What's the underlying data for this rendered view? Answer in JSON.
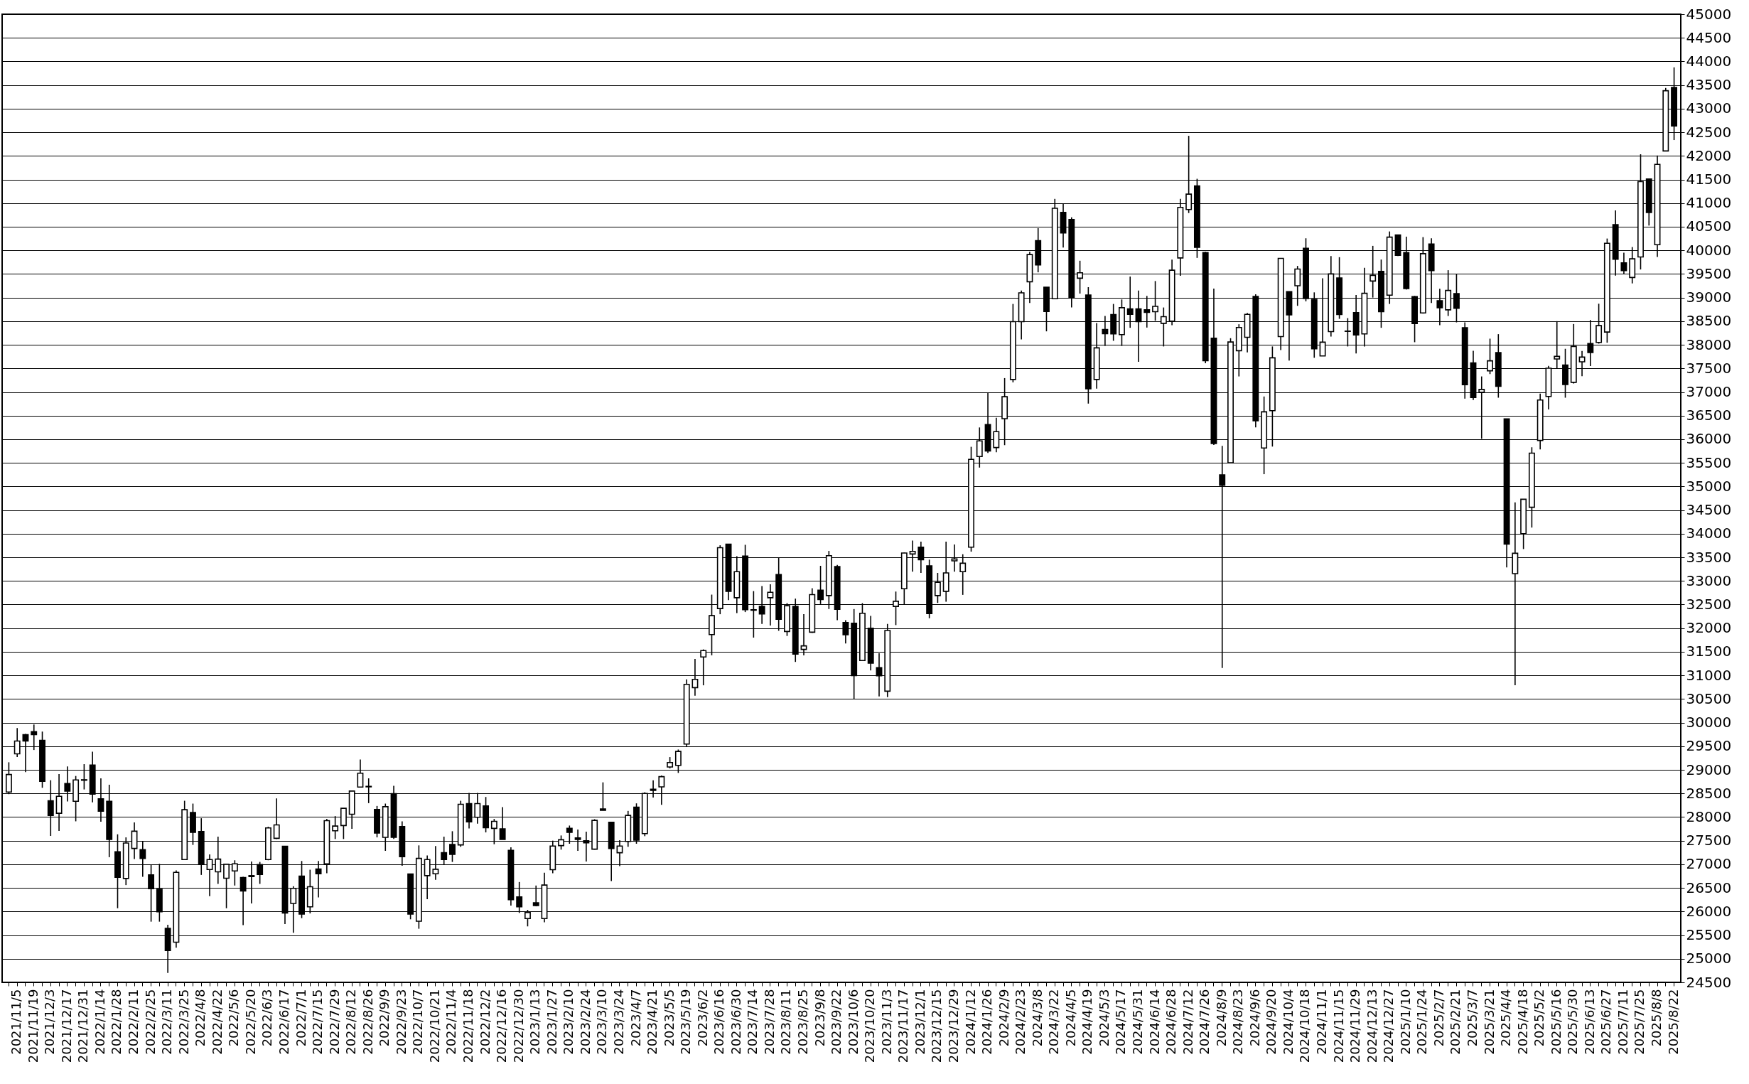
{
  "chart_data": {
    "type": "candlestick",
    "categories": [
      null,
      "2021/11/5",
      null,
      "2021/11/19",
      null,
      "2021/12/3",
      null,
      "2021/12/17",
      null,
      "2021/12/31",
      null,
      "2022/1/14",
      null,
      "2022/1/28",
      null,
      "2022/2/11",
      null,
      "2022/2/25",
      null,
      "2022/3/11",
      null,
      "2022/3/25",
      null,
      "2022/4/8",
      null,
      "2022/4/22",
      null,
      "2022/5/6",
      null,
      "2022/5/20",
      null,
      "2022/6/3",
      null,
      "2022/6/17",
      null,
      "2022/7/1",
      null,
      "2022/7/15",
      null,
      "2022/7/29",
      null,
      "2022/8/12",
      null,
      "2022/8/26",
      null,
      "2022/9/9",
      null,
      "2022/9/23",
      null,
      "2022/10/7",
      null,
      "2022/10/21",
      null,
      "2022/11/4",
      null,
      "2022/11/18",
      null,
      "2022/12/2",
      null,
      "2022/12/16",
      null,
      "2022/12/30",
      null,
      "2023/1/13",
      null,
      "2023/1/27",
      null,
      "2023/2/10",
      null,
      "2023/2/24",
      null,
      "2023/3/10",
      null,
      "2023/3/24",
      null,
      "2023/4/7",
      null,
      "2023/4/21",
      null,
      "2023/5/5",
      null,
      "2023/5/19",
      null,
      "2023/6/2",
      null,
      "2023/6/16",
      null,
      "2023/6/30",
      null,
      "2023/7/14",
      null,
      "2023/7/28",
      null,
      "2023/8/11",
      null,
      "2023/8/25",
      null,
      "2023/9/8",
      null,
      "2023/9/22",
      null,
      "2023/10/6",
      null,
      "2023/10/20",
      null,
      "2023/11/3",
      null,
      "2023/11/17",
      null,
      "2023/12/1",
      null,
      "2023/12/15",
      null,
      "2023/12/29",
      null,
      "2024/1/12",
      null,
      "2024/1/26",
      null,
      "2024/2/9",
      null,
      "2024/2/23",
      null,
      "2024/3/8",
      null,
      "2024/3/22",
      null,
      "2024/4/5",
      null,
      "2024/4/19",
      null,
      "2024/5/3",
      null,
      "2024/5/17",
      null,
      "2024/5/31",
      null,
      "2024/6/14",
      null,
      "2024/6/28",
      null,
      "2024/7/12",
      null,
      "2024/7/26",
      null,
      "2024/8/9",
      null,
      "2024/8/23",
      null,
      "2024/9/6",
      null,
      "2024/9/20",
      null,
      "2024/10/4",
      null,
      "2024/10/18",
      null,
      "2024/11/1",
      null,
      "2024/11/15",
      null,
      "2024/11/29",
      null,
      "2024/12/13",
      null,
      "2024/12/27",
      null,
      "2025/1/10",
      null,
      "2025/1/24",
      null,
      "2025/2/7",
      null,
      "2025/2/21",
      null,
      "2025/3/7",
      null,
      "2025/3/21",
      null,
      "2025/4/4",
      null,
      "2025/4/18",
      null,
      "2025/5/2",
      null,
      "2025/5/16",
      null,
      "2025/5/30",
      null,
      "2025/6/13",
      null,
      "2025/6/27",
      null,
      "2025/7/11",
      null,
      "2025/7/25",
      null,
      "2025/8/8",
      null,
      "2025/8/22"
    ],
    "ohlc": [
      [
        28530,
        29160,
        28485,
        28900
      ],
      [
        29340,
        29885,
        29270,
        29610
      ],
      [
        29745,
        29760,
        28950,
        29610
      ],
      [
        29810,
        29960,
        29420,
        29745
      ],
      [
        29625,
        29810,
        28620,
        28755
      ],
      [
        28345,
        28780,
        27600,
        28035
      ],
      [
        28080,
        28910,
        27705,
        28440
      ],
      [
        28710,
        29070,
        28330,
        28550
      ],
      [
        28335,
        28870,
        27910,
        28785
      ],
      [
        28780,
        29120,
        28585,
        28790
      ],
      [
        29100,
        29385,
        28310,
        28485
      ],
      [
        28385,
        28820,
        27900,
        28125
      ],
      [
        28335,
        28685,
        27150,
        27525
      ],
      [
        27265,
        27635,
        26070,
        26725
      ],
      [
        26700,
        27570,
        26560,
        27450
      ],
      [
        27335,
        27885,
        27110,
        27700
      ],
      [
        27310,
        27485,
        26735,
        27125
      ],
      [
        26775,
        26985,
        25785,
        26485
      ],
      [
        26470,
        27010,
        25785,
        25995
      ],
      [
        25645,
        25720,
        24700,
        25175
      ],
      [
        25350,
        26870,
        25235,
        26830
      ],
      [
        27100,
        28345,
        27100,
        28155
      ],
      [
        28095,
        28285,
        27410,
        27675
      ],
      [
        27695,
        27975,
        26775,
        26995
      ],
      [
        26890,
        27210,
        26325,
        27100
      ],
      [
        26840,
        27585,
        26585,
        27110
      ],
      [
        26705,
        27000,
        26070,
        27000
      ],
      [
        26860,
        27085,
        26550,
        27010
      ],
      [
        26720,
        26735,
        25710,
        26435
      ],
      [
        26760,
        27060,
        26170,
        26740
      ],
      [
        26995,
        27050,
        26585,
        26785
      ],
      [
        27100,
        27795,
        27085,
        27770
      ],
      [
        27550,
        28395,
        27535,
        27835
      ],
      [
        27380,
        27380,
        25735,
        25970
      ],
      [
        26170,
        26535,
        25550,
        26490
      ],
      [
        26750,
        27070,
        25860,
        25945
      ],
      [
        26100,
        26885,
        25960,
        26525
      ],
      [
        26900,
        27070,
        26300,
        26800
      ],
      [
        27010,
        27960,
        26810,
        27925
      ],
      [
        27710,
        28020,
        27535,
        27810
      ],
      [
        27820,
        28185,
        27535,
        28185
      ],
      [
        28060,
        28550,
        27750,
        28550
      ],
      [
        28635,
        29220,
        28635,
        28930
      ],
      [
        28650,
        28820,
        28295,
        28640
      ],
      [
        28160,
        28235,
        27570,
        27660
      ],
      [
        27570,
        28285,
        27285,
        28220
      ],
      [
        28495,
        28660,
        27535,
        27570
      ],
      [
        27800,
        27910,
        26970,
        27160
      ],
      [
        26795,
        26795,
        25835,
        25945
      ],
      [
        25795,
        27400,
        25635,
        27125
      ],
      [
        26760,
        27185,
        26260,
        27100
      ],
      [
        26800,
        27385,
        26670,
        26895
      ],
      [
        27245,
        27585,
        26985,
        27100
      ],
      [
        27420,
        27700,
        27050,
        27210
      ],
      [
        27410,
        28345,
        27370,
        28270
      ],
      [
        28285,
        28510,
        27760,
        27900
      ],
      [
        27995,
        28510,
        27860,
        28285
      ],
      [
        28235,
        28425,
        27675,
        27775
      ],
      [
        27760,
        27960,
        27425,
        27910
      ],
      [
        27750,
        28210,
        27525,
        27525
      ],
      [
        27295,
        27360,
        26125,
        26250
      ],
      [
        26310,
        26625,
        25970,
        26100
      ],
      [
        25850,
        26035,
        25685,
        25980
      ],
      [
        26185,
        26550,
        26110,
        26125
      ],
      [
        25850,
        26820,
        25770,
        26560
      ],
      [
        26885,
        27500,
        26810,
        27385
      ],
      [
        27395,
        27610,
        27310,
        27520
      ],
      [
        27760,
        27820,
        27435,
        27675
      ],
      [
        27560,
        27735,
        27285,
        27525
      ],
      [
        27500,
        27690,
        27060,
        27455
      ],
      [
        27320,
        27955,
        27310,
        27930
      ],
      [
        28170,
        28735,
        28140,
        28145
      ],
      [
        27890,
        27890,
        26645,
        27335
      ],
      [
        27245,
        27510,
        26960,
        27385
      ],
      [
        27485,
        28130,
        27370,
        28035
      ],
      [
        28210,
        28290,
        27435,
        27510
      ],
      [
        27650,
        28525,
        27595,
        28500
      ],
      [
        28590,
        28780,
        28415,
        28565
      ],
      [
        28640,
        28880,
        28260,
        28855
      ],
      [
        29060,
        29270,
        29030,
        29155
      ],
      [
        29095,
        29430,
        28935,
        29390
      ],
      [
        29545,
        30915,
        29495,
        30810
      ],
      [
        30740,
        31350,
        30570,
        30915
      ],
      [
        31390,
        31550,
        30790,
        31525
      ],
      [
        31865,
        32710,
        31425,
        32265
      ],
      [
        32415,
        33755,
        32295,
        33705
      ],
      [
        33780,
        33780,
        32595,
        32780
      ],
      [
        32645,
        33525,
        32320,
        33195
      ],
      [
        33525,
        33765,
        32340,
        32390
      ],
      [
        32380,
        32785,
        31800,
        32390
      ],
      [
        32460,
        32890,
        32090,
        32300
      ],
      [
        32645,
        32930,
        32055,
        32760
      ],
      [
        33135,
        33500,
        31945,
        32190
      ],
      [
        31930,
        32530,
        31835,
        32475
      ],
      [
        32460,
        32625,
        31285,
        31450
      ],
      [
        31550,
        32295,
        31425,
        31625
      ],
      [
        31915,
        32845,
        31900,
        32710
      ],
      [
        32805,
        33320,
        32510,
        32605
      ],
      [
        32690,
        33635,
        32405,
        33535
      ],
      [
        33305,
        33340,
        32170,
        32400
      ],
      [
        32120,
        32170,
        31675,
        31860
      ],
      [
        32105,
        32405,
        30500,
        30995
      ],
      [
        31315,
        32530,
        31315,
        32315
      ],
      [
        32000,
        32260,
        31105,
        31260
      ],
      [
        31165,
        31470,
        30555,
        30990
      ],
      [
        30665,
        32090,
        30540,
        31950
      ],
      [
        32460,
        32775,
        32065,
        32570
      ],
      [
        32835,
        33600,
        32500,
        33590
      ],
      [
        33570,
        33855,
        33195,
        33625
      ],
      [
        33715,
        33830,
        33170,
        33450
      ],
      [
        33320,
        33450,
        32210,
        32310
      ],
      [
        32690,
        33170,
        32535,
        32970
      ],
      [
        32780,
        33830,
        32560,
        33170
      ],
      [
        33425,
        33770,
        33195,
        33465
      ],
      [
        33195,
        33565,
        32705,
        33375
      ],
      [
        33715,
        35840,
        33620,
        35575
      ],
      [
        35635,
        36250,
        35400,
        35965
      ],
      [
        36310,
        36985,
        35710,
        35750
      ],
      [
        35825,
        36455,
        35725,
        36160
      ],
      [
        36435,
        37295,
        35875,
        36900
      ],
      [
        37265,
        38865,
        37205,
        38490
      ],
      [
        38490,
        39150,
        38115,
        39100
      ],
      [
        39335,
        39970,
        38885,
        39910
      ],
      [
        40205,
        40470,
        39535,
        39690
      ],
      [
        39220,
        39220,
        38285,
        38705
      ],
      [
        38975,
        41090,
        38970,
        40890
      ],
      [
        40805,
        40980,
        40060,
        40370
      ],
      [
        40655,
        40700,
        38790,
        38990
      ],
      [
        39410,
        39780,
        39085,
        39525
      ],
      [
        39055,
        39220,
        36755,
        37070
      ],
      [
        37265,
        38460,
        37070,
        37935
      ],
      [
        38325,
        38610,
        37975,
        38235
      ],
      [
        38640,
        38865,
        38085,
        38230
      ],
      [
        38215,
        38960,
        37975,
        38785
      ],
      [
        38760,
        39445,
        38360,
        38645
      ],
      [
        38760,
        39150,
        37640,
        38490
      ],
      [
        38740,
        39035,
        38365,
        38685
      ],
      [
        38700,
        39350,
        38510,
        38815
      ],
      [
        38455,
        38790,
        37965,
        38595
      ],
      [
        38500,
        39805,
        38415,
        39580
      ],
      [
        39840,
        41090,
        39460,
        40910
      ],
      [
        40865,
        42425,
        40790,
        41190
      ],
      [
        41365,
        41515,
        39840,
        40065
      ],
      [
        39955,
        39970,
        37610,
        37665
      ],
      [
        38140,
        39190,
        35880,
        35910
      ],
      [
        35245,
        35860,
        31155,
        35025
      ],
      [
        35500,
        38140,
        35500,
        38060
      ],
      [
        37875,
        38435,
        37330,
        38365
      ],
      [
        38160,
        38675,
        37840,
        38645
      ],
      [
        39025,
        39070,
        36250,
        36390
      ],
      [
        35815,
        36905,
        35260,
        36580
      ],
      [
        36605,
        37965,
        35845,
        37725
      ],
      [
        38175,
        39835,
        37890,
        39830
      ],
      [
        39125,
        39125,
        37665,
        38635
      ],
      [
        39250,
        39670,
        38825,
        39605
      ],
      [
        40045,
        40255,
        38920,
        38980
      ],
      [
        38960,
        39110,
        37725,
        37915
      ],
      [
        37765,
        39410,
        37765,
        38055
      ],
      [
        38280,
        39880,
        38175,
        39500
      ],
      [
        39415,
        39855,
        38550,
        38640
      ],
      [
        38290,
        38565,
        37965,
        38285
      ],
      [
        38680,
        39055,
        37815,
        38210
      ],
      [
        38230,
        39630,
        37965,
        39090
      ],
      [
        39350,
        40095,
        39000,
        39470
      ],
      [
        39555,
        39805,
        38360,
        38700
      ],
      [
        39050,
        40400,
        38865,
        40280
      ],
      [
        40325,
        40330,
        39880,
        39895
      ],
      [
        39955,
        40290,
        39170,
        39190
      ],
      [
        39020,
        39035,
        38055,
        38450
      ],
      [
        38675,
        40280,
        38660,
        39930
      ],
      [
        40135,
        40255,
        38885,
        39570
      ],
      [
        38935,
        39185,
        38415,
        38785
      ],
      [
        38740,
        39580,
        38610,
        39150
      ],
      [
        39085,
        39505,
        38475,
        38775
      ],
      [
        38360,
        38475,
        36860,
        37155
      ],
      [
        37615,
        37875,
        36830,
        36885
      ],
      [
        36995,
        37330,
        36010,
        37055
      ],
      [
        37450,
        38130,
        37380,
        37660
      ],
      [
        37835,
        38225,
        36880,
        37120
      ],
      [
        36430,
        36430,
        33285,
        33780
      ],
      [
        33155,
        34665,
        30790,
        33585
      ],
      [
        34000,
        34735,
        33675,
        34730
      ],
      [
        34560,
        35830,
        34130,
        35705
      ],
      [
        35975,
        36965,
        35785,
        36830
      ],
      [
        36905,
        37555,
        36630,
        37505
      ],
      [
        37700,
        38500,
        37490,
        37755
      ],
      [
        37570,
        37915,
        36880,
        37160
      ],
      [
        37205,
        38440,
        37180,
        37965
      ],
      [
        37640,
        37870,
        37335,
        37740
      ],
      [
        38025,
        38525,
        37550,
        37835
      ],
      [
        38050,
        38870,
        38025,
        38405
      ],
      [
        38270,
        40250,
        38045,
        40150
      ],
      [
        40545,
        40845,
        39465,
        39810
      ],
      [
        39735,
        39950,
        39490,
        39570
      ],
      [
        39425,
        40070,
        39300,
        39820
      ],
      [
        39860,
        42035,
        39595,
        41455
      ],
      [
        41510,
        41510,
        40525,
        40800
      ],
      [
        40120,
        42010,
        39860,
        41820
      ],
      [
        42105,
        43440,
        42095,
        43380
      ],
      [
        43450,
        43875,
        42335,
        42635
      ]
    ],
    "ylim": [
      24500,
      45000
    ],
    "yticks": [
      24500,
      25000,
      25500,
      26000,
      26500,
      27000,
      27500,
      28000,
      28500,
      29000,
      29500,
      30000,
      30500,
      31000,
      31500,
      32000,
      32500,
      33000,
      33500,
      34000,
      34500,
      35000,
      35500,
      36000,
      36500,
      37000,
      37500,
      38000,
      38500,
      39000,
      39500,
      40000,
      40500,
      41000,
      41500,
      42000,
      42500,
      43000,
      43500,
      44000,
      44500,
      45000
    ],
    "grid": "y"
  }
}
